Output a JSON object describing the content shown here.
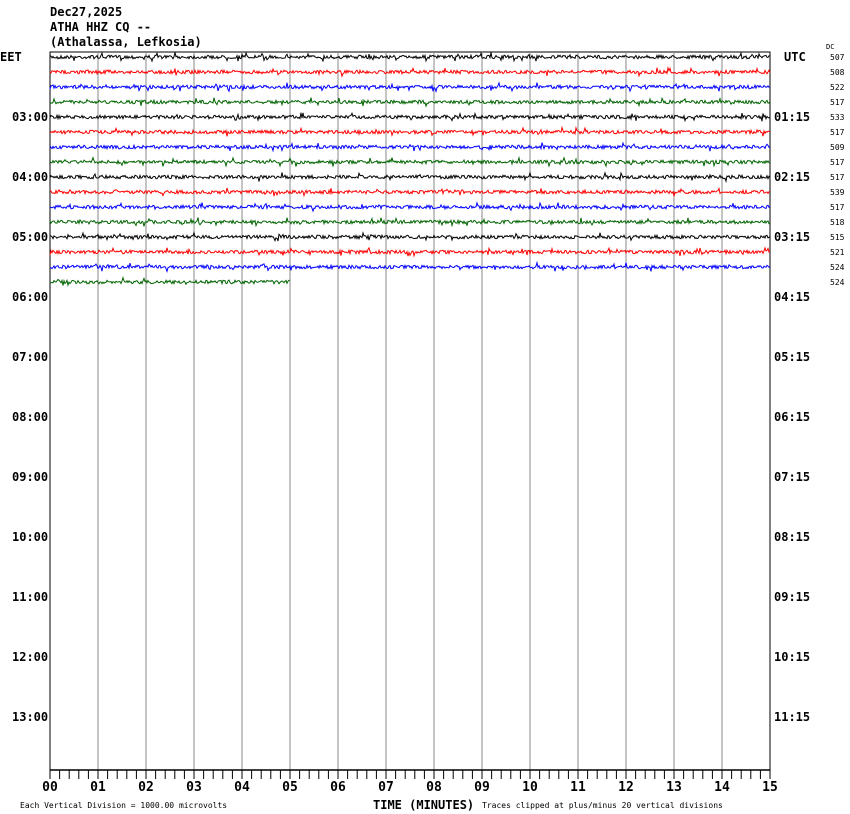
{
  "header": {
    "date": "Dec27,2025",
    "station": "ATHA HHZ CQ --",
    "location": "(Athalassa, Lefkosia)"
  },
  "left_timezone": "EET",
  "right_timezone": "UTC",
  "dc_label": "DC",
  "chart_data": {
    "type": "line",
    "xlabel": "TIME (MINUTES)",
    "xlim": [
      0,
      15
    ],
    "x_ticks": [
      "00",
      "01",
      "02",
      "03",
      "04",
      "05",
      "06",
      "07",
      "08",
      "09",
      "10",
      "11",
      "12",
      "13",
      "14",
      "15"
    ],
    "left_hour_labels": [
      "03:00",
      "04:00",
      "05:00",
      "06:00",
      "07:00",
      "08:00",
      "09:00",
      "10:00",
      "11:00",
      "12:00",
      "13:00"
    ],
    "right_hour_labels": [
      "01:15",
      "02:15",
      "03:15",
      "04:15",
      "05:15",
      "06:15",
      "07:15",
      "08:15",
      "09:15",
      "10:15",
      "11:15"
    ],
    "trace_colors": [
      "#000000",
      "#ff0000",
      "#0000ff",
      "#006400"
    ],
    "dc_offsets": [
      "507",
      "508",
      "522",
      "517",
      "533",
      "517",
      "509",
      "517",
      "517",
      "539",
      "517",
      "518",
      "515",
      "521",
      "524",
      "524"
    ],
    "traces_recorded": 16,
    "last_trace_end_minute": 5,
    "grid": true
  },
  "footer": {
    "scale_note": "Each Vertical Division = 1000.00 microvolts",
    "clip_note": "Traces clipped at plus/minus 20 vertical divisions"
  }
}
